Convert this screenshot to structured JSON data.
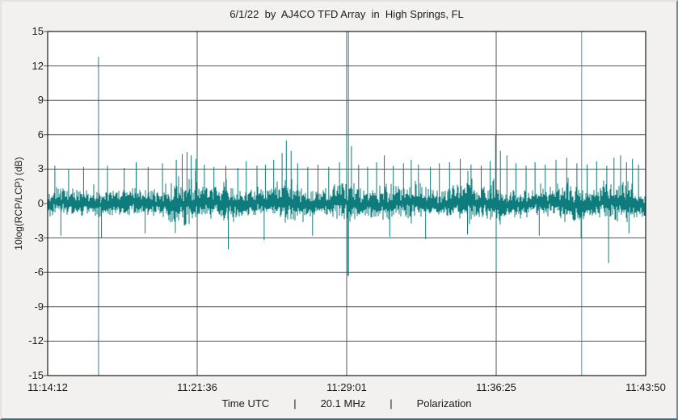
{
  "chart": {
    "footer": [
      "Time UTC",
      "|",
      "20.1 MHz",
      "|",
      "Polarization"
    ]
  },
  "chart_data": {
    "type": "line",
    "title": "6/1/22  by  AJ4CO TFD Array  in  High Springs, FL",
    "xlabel": "Time UTC",
    "ylabel": "10log(RCP/LCP) (dB)",
    "frequency_label": "20.1 MHz",
    "mode_label": "Polarization",
    "ylim": [
      -15,
      15
    ],
    "ytick_step": 3,
    "yticks": [
      15,
      12,
      9,
      6,
      3,
      0,
      -3,
      -6,
      -9,
      -12,
      -15
    ],
    "x_ticks": [
      {
        "label": "11:14:12",
        "pos": 0
      },
      {
        "label": "11:21:36",
        "pos": 0.25
      },
      {
        "label": "11:29:01",
        "pos": 0.5
      },
      {
        "label": "11:36:25",
        "pos": 0.75
      },
      {
        "label": "11:43:50",
        "pos": 1
      }
    ],
    "grid": true,
    "legend": false,
    "series_color": "#0e7c7c",
    "grid_color": "#3a3a3a",
    "border_color": "#1a1a1a",
    "baseline": 0,
    "noise_sigma": 0.85,
    "noise_band_halfwidth": 0.35,
    "noise_bumps": [
      {
        "c": 0.228,
        "w": 0.018,
        "g": 1.6
      },
      {
        "c": 0.3,
        "w": 0.01,
        "g": 0.7
      },
      {
        "c": 0.398,
        "w": 0.012,
        "g": 1.3
      },
      {
        "c": 0.5,
        "w": 0.012,
        "g": 1.1
      },
      {
        "c": 0.563,
        "w": 0.01,
        "g": 0.8
      },
      {
        "c": 0.615,
        "w": 0.012,
        "g": 0.9
      },
      {
        "c": 0.7,
        "w": 0.015,
        "g": 0.8
      },
      {
        "c": 0.752,
        "w": 0.012,
        "g": 1.2
      },
      {
        "c": 0.87,
        "w": 0.02,
        "g": 0.8
      },
      {
        "c": 0.957,
        "w": 0.018,
        "g": 1.0
      }
    ],
    "spikes_up": [
      [
        0.012,
        3.3
      ],
      [
        0.035,
        3.0
      ],
      [
        0.06,
        3.2
      ],
      [
        0.1,
        3.3
      ],
      [
        0.128,
        3.1
      ],
      [
        0.148,
        3.6
      ],
      [
        0.168,
        3.2
      ],
      [
        0.192,
        3.5
      ],
      [
        0.215,
        3.8
      ],
      [
        0.225,
        4.3
      ],
      [
        0.233,
        4.5
      ],
      [
        0.24,
        4.2
      ],
      [
        0.248,
        3.9
      ],
      [
        0.262,
        3.4
      ],
      [
        0.278,
        3.2
      ],
      [
        0.298,
        3.3
      ],
      [
        0.318,
        3.1
      ],
      [
        0.332,
        3.7
      ],
      [
        0.35,
        3.3
      ],
      [
        0.364,
        3.4
      ],
      [
        0.378,
        3.8
      ],
      [
        0.392,
        4.4
      ],
      [
        0.399,
        5.5
      ],
      [
        0.407,
        4.6
      ],
      [
        0.418,
        3.5
      ],
      [
        0.435,
        3.2
      ],
      [
        0.452,
        3.4
      ],
      [
        0.47,
        3.2
      ],
      [
        0.488,
        3.6
      ],
      [
        0.5,
        6.2
      ],
      [
        0.508,
        5.0
      ],
      [
        0.52,
        3.4
      ],
      [
        0.535,
        3.2
      ],
      [
        0.55,
        3.6
      ],
      [
        0.563,
        4.2
      ],
      [
        0.578,
        3.3
      ],
      [
        0.595,
        3.5
      ],
      [
        0.608,
        3.8
      ],
      [
        0.62,
        3.4
      ],
      [
        0.64,
        3.2
      ],
      [
        0.655,
        3.5
      ],
      [
        0.672,
        3.6
      ],
      [
        0.69,
        3.9
      ],
      [
        0.708,
        3.4
      ],
      [
        0.725,
        3.3
      ],
      [
        0.74,
        3.7
      ],
      [
        0.749,
        6.0
      ],
      [
        0.757,
        4.6
      ],
      [
        0.768,
        4.2
      ],
      [
        0.783,
        3.5
      ],
      [
        0.8,
        3.3
      ],
      [
        0.815,
        3.6
      ],
      [
        0.832,
        3.4
      ],
      [
        0.85,
        3.8
      ],
      [
        0.868,
        4.0
      ],
      [
        0.885,
        3.5
      ],
      [
        0.902,
        3.4
      ],
      [
        0.918,
        3.7
      ],
      [
        0.935,
        3.3
      ],
      [
        0.947,
        4.0
      ],
      [
        0.958,
        4.2
      ],
      [
        0.968,
        3.6
      ],
      [
        0.978,
        3.9
      ],
      [
        0.988,
        3.4
      ]
    ],
    "spikes_down": [
      [
        0.022,
        -2.8
      ],
      [
        0.09,
        -3.0
      ],
      [
        0.163,
        -2.6
      ],
      [
        0.302,
        -4.0
      ],
      [
        0.362,
        -3.2
      ],
      [
        0.443,
        -2.8
      ],
      [
        0.502,
        -6.3
      ],
      [
        0.572,
        -2.9
      ],
      [
        0.632,
        -3.1
      ],
      [
        0.702,
        -2.7
      ],
      [
        0.75,
        -5.6
      ],
      [
        0.822,
        -2.8
      ],
      [
        0.892,
        -3.0
      ],
      [
        0.938,
        -5.2
      ],
      [
        0.972,
        -2.6
      ]
    ],
    "streaks": [
      {
        "x": 0.085,
        "top": 12.8,
        "bottom": -15,
        "width": 1,
        "opacity": 0.9
      },
      {
        "x": 0.503,
        "top": 15,
        "bottom": -6.3,
        "width": 1,
        "opacity": 0.9
      },
      {
        "x": 0.893,
        "top": 15,
        "bottom": -15,
        "width": 1,
        "opacity": 0.75
      }
    ]
  }
}
